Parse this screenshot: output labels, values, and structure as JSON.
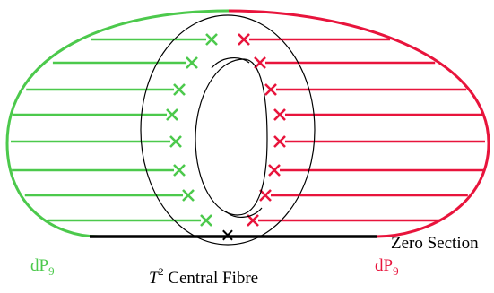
{
  "diagram": {
    "colors": {
      "left": "#4cc94c",
      "right": "#e8143c",
      "outline": "#000000",
      "zero_section": "#000000"
    },
    "labels": {
      "left_dp": "dP",
      "left_dp_sub": "9",
      "right_dp": "dP",
      "right_dp_sub": "9",
      "zero_section": "Zero Section",
      "central_fibre_base": "T",
      "central_fibre_exp": "2",
      "central_fibre_text": " Central Fibre"
    },
    "marker_glyph": "×",
    "left_arrow_count": 9,
    "right_arrow_count": 9
  }
}
